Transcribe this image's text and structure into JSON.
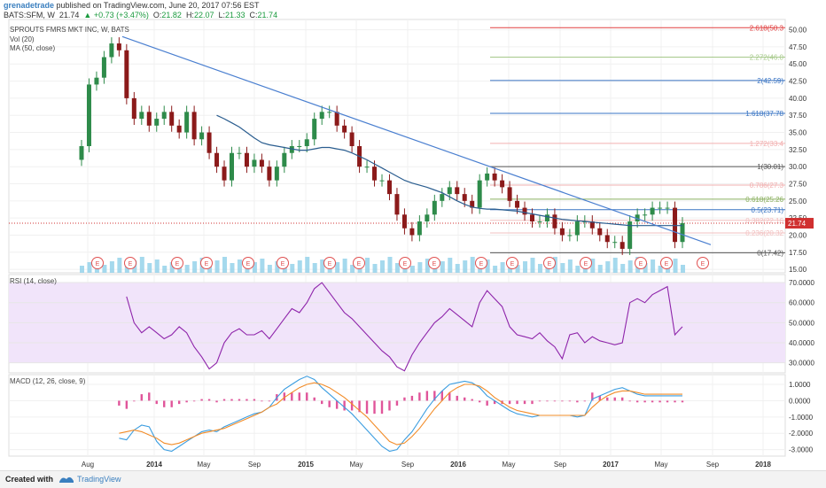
{
  "header": {
    "user": "grenadetrade",
    "published": " published on TradingView.com, June 20, 2017 07:56 EST",
    "symbol": "BATS:SFM, W",
    "last": "21.74",
    "change": "▲ +0.73 (+3.47%)",
    "open_label": "O:",
    "open": "21.82",
    "high_label": "H:",
    "high": "22.07",
    "low_label": "L:",
    "low": "21.33",
    "close_label": "C:",
    "close": "21.74"
  },
  "legend": {
    "title": "SPROUTS FMRS MKT INC, W, BATS",
    "vol": "Vol (20)",
    "ma": "MA (50, close)",
    "rsi": "RSI (14, close)",
    "macd": "MACD (12, 26, close, 9)"
  },
  "footer": {
    "created": "Created with",
    "brand": "TradingView"
  },
  "colors": {
    "accent": "#3a7fbf",
    "up": "#1a9a3e",
    "candle_up": "#2e8b4a",
    "candle_down": "#8b1a1a",
    "ma": "#2a5d8f",
    "trendline": "#4a7fd0",
    "rsi": "#8e24aa",
    "rsi_band": "#f1e4fa",
    "macd": "#3b9de0",
    "signal": "#f28c28",
    "hist": "#e0559a",
    "volume": "#8ecfe8",
    "earnings": "#e05050",
    "last_price": "#d03030"
  },
  "chart_data": {
    "type": "candlestick",
    "symbol": "BATS:SFM",
    "interval": "W",
    "x_ticks": [
      "Aug",
      "2014",
      "May",
      "Sep",
      "2015",
      "May",
      "Sep",
      "2016",
      "May",
      "Sep",
      "2017",
      "May",
      "Sep",
      "2018"
    ],
    "price_axis": {
      "ticks": [
        "50.00",
        "47.50",
        "45.00",
        "42.50",
        "40.00",
        "37.50",
        "35.00",
        "32.50",
        "30.00",
        "27.50",
        "25.00",
        "22.50",
        "20.00",
        "17.50",
        "15.00"
      ],
      "ylim": [
        14.5,
        51.5
      ]
    },
    "last_price_label": "21.74",
    "fibonacci": [
      {
        "label": "2.618(50.3",
        "value": 50.3,
        "color": "#e04040"
      },
      {
        "label": "2.272(46.0",
        "value": 46.0,
        "color": "#a6c98a"
      },
      {
        "label": "2(42.59)",
        "value": 42.59,
        "color": "#3a75c4"
      },
      {
        "label": "1.618(37.78",
        "value": 37.78,
        "color": "#3a75c4"
      },
      {
        "label": "1.272(33.4",
        "value": 33.4,
        "color": "#f2b0b0"
      },
      {
        "label": "1(30.01)",
        "value": 30.01,
        "color": "#555555"
      },
      {
        "label": "0.786(27.3",
        "value": 27.3,
        "color": "#f2b0b0"
      },
      {
        "label": "0.618(25.26",
        "value": 25.26,
        "color": "#8bb060"
      },
      {
        "label": "0.5(23.71)",
        "value": 23.71,
        "color": "#3a75c4"
      },
      {
        "label": "0.382(22.16",
        "value": 22.16,
        "color": "#f2c0c0"
      },
      {
        "label": "0.236(20.32",
        "value": 20.32,
        "color": "#f2c0c0"
      },
      {
        "label": "0(17.42)",
        "value": 17.42,
        "color": "#555555"
      }
    ],
    "price_close": [
      33,
      42,
      43,
      46,
      48,
      47,
      40,
      37,
      38,
      36,
      37,
      38,
      36,
      35,
      38,
      34,
      35,
      32,
      30,
      28,
      32,
      32,
      30,
      31,
      30,
      28,
      30,
      32,
      33,
      33,
      34,
      37,
      38,
      38,
      36,
      35,
      33,
      30,
      30,
      28,
      28,
      26,
      23,
      21,
      20,
      22,
      23,
      25,
      26,
      27,
      26,
      25,
      24,
      28,
      29,
      28,
      27,
      25,
      24,
      23,
      22,
      22,
      23,
      21,
      20,
      20,
      22,
      22,
      21,
      20,
      19,
      19,
      18,
      22,
      23,
      23,
      24,
      24,
      24,
      19,
      21.74
    ],
    "ma50": [
      null,
      null,
      null,
      null,
      null,
      null,
      null,
      null,
      null,
      null,
      null,
      null,
      null,
      null,
      null,
      null,
      null,
      null,
      37.5,
      37,
      36.4,
      35.8,
      35,
      34.2,
      33.5,
      33.2,
      33,
      32.8,
      32.6,
      32.4,
      32.4,
      32.6,
      32.8,
      32.8,
      32.6,
      32.4,
      32,
      31.5,
      31,
      30.4,
      29.8,
      29.2,
      28.6,
      28,
      27.6,
      27.3,
      27,
      26.6,
      26.2,
      25.6,
      25,
      24.5,
      24.1,
      23.9,
      23.8,
      23.8,
      23.7,
      23.6,
      23.5,
      23.3,
      23.1,
      22.9,
      22.7,
      22.5,
      22.3,
      22.2,
      22.1,
      22,
      21.9,
      21.8,
      21.7,
      21.6,
      21.5,
      21.4,
      21.4,
      21.4,
      21.4,
      21.4,
      21.4,
      21.4,
      21.4
    ],
    "rsi": {
      "ticks": [
        "70.0000",
        "60.0000",
        "50.0000",
        "40.0000",
        "30.0000"
      ],
      "ylim": [
        25,
        74
      ],
      "band": [
        30,
        70
      ],
      "values": [
        null,
        null,
        null,
        null,
        null,
        null,
        63,
        50,
        45,
        48,
        45,
        42,
        44,
        48,
        45,
        38,
        33,
        27,
        30,
        40,
        45,
        47,
        44,
        44,
        46,
        42,
        47,
        52,
        57,
        55,
        60,
        67,
        70,
        65,
        60,
        55,
        52,
        48,
        44,
        40,
        36,
        33,
        28,
        26,
        34,
        40,
        45,
        50,
        53,
        57,
        54,
        51,
        48,
        60,
        66,
        62,
        58,
        48,
        44,
        43,
        42,
        45,
        41,
        38,
        32,
        44,
        45,
        40,
        43,
        41,
        40,
        39,
        40,
        60,
        62,
        60,
        64,
        66,
        68,
        44,
        48
      ]
    },
    "macd": {
      "ticks": [
        "1.0000",
        "0.0000",
        "-1.0000",
        "-2.0000",
        "-3.0000"
      ],
      "ylim": [
        -3.4,
        1.6
      ],
      "macd": [
        null,
        null,
        null,
        null,
        null,
        -2.3,
        -2.4,
        -1.8,
        -1.5,
        -1.6,
        -2.5,
        -3.0,
        -3.1,
        -2.8,
        -2.5,
        -2.2,
        -1.9,
        -1.8,
        -1.9,
        -1.6,
        -1.4,
        -1.2,
        -1.0,
        -0.8,
        -0.7,
        -0.4,
        0.2,
        0.7,
        1.0,
        1.3,
        1.5,
        1.3,
        0.8,
        0.4,
        0.0,
        -0.4,
        -0.8,
        -1.3,
        -1.8,
        -2.3,
        -2.8,
        -3.1,
        -3.0,
        -2.4,
        -1.9,
        -1.2,
        -0.5,
        0.1,
        0.6,
        1.0,
        1.1,
        1.2,
        1.1,
        0.8,
        0.3,
        0.0,
        -0.3,
        -0.6,
        -0.8,
        -0.9,
        -1.0,
        -0.9,
        -0.9,
        -0.9,
        -0.9,
        -0.9,
        -1.0,
        -0.9,
        0.1,
        0.3,
        0.5,
        0.7,
        0.8,
        0.6,
        0.4,
        0.3,
        0.3,
        0.3,
        0.3,
        0.3,
        0.3
      ],
      "signal": [
        null,
        null,
        null,
        null,
        null,
        -2.0,
        -1.9,
        -1.8,
        -1.9,
        -2.1,
        -2.3,
        -2.6,
        -2.7,
        -2.6,
        -2.4,
        -2.2,
        -2.0,
        -1.9,
        -1.8,
        -1.7,
        -1.5,
        -1.3,
        -1.1,
        -0.9,
        -0.7,
        -0.4,
        -0.2,
        0.2,
        0.5,
        0.8,
        1.0,
        1.1,
        1.0,
        0.8,
        0.5,
        0.2,
        -0.2,
        -0.6,
        -1.0,
        -1.5,
        -2.0,
        -2.5,
        -2.7,
        -2.6,
        -2.2,
        -1.7,
        -1.1,
        -0.5,
        0.0,
        0.5,
        0.8,
        1.0,
        1.0,
        0.9,
        0.6,
        0.2,
        -0.1,
        -0.4,
        -0.6,
        -0.7,
        -0.8,
        -0.9,
        -0.9,
        -0.9,
        -0.9,
        -0.9,
        -0.9,
        -0.9,
        -0.4,
        0.0,
        0.3,
        0.5,
        0.6,
        0.6,
        0.5,
        0.4,
        0.4,
        0.4,
        0.4,
        0.4,
        0.4
      ]
    }
  }
}
